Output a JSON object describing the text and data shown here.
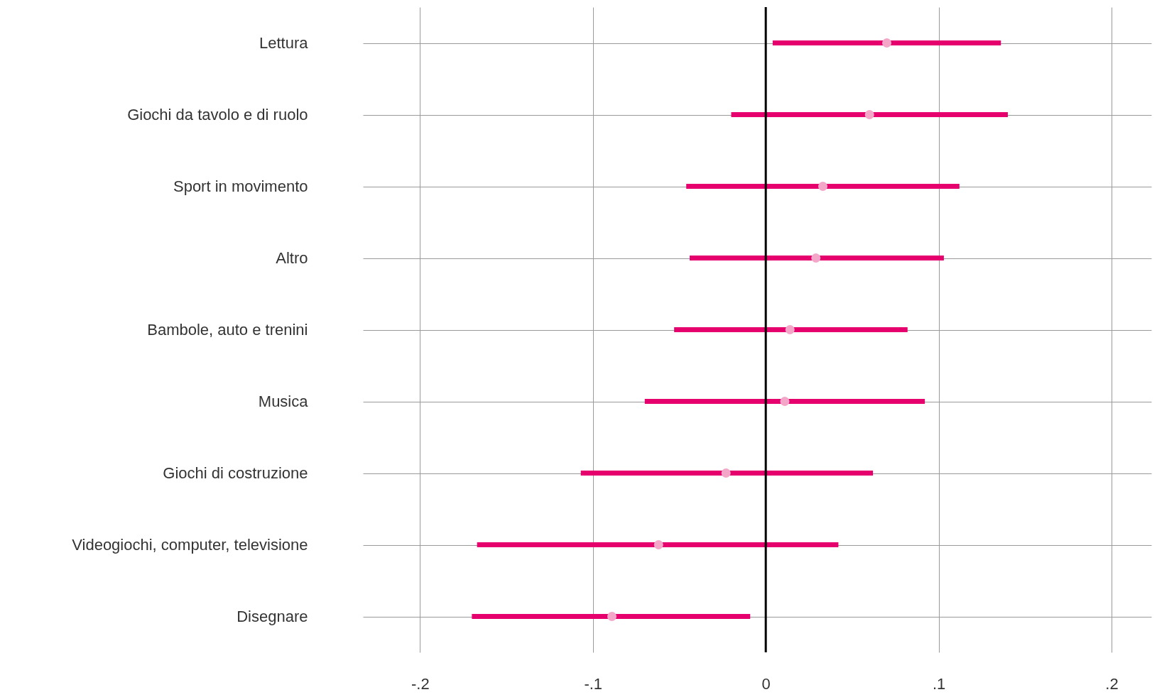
{
  "chart_data": {
    "type": "scatter",
    "orientation": "horizontal",
    "categories": [
      "Lettura",
      "Giochi da tavolo e di ruolo",
      "Sport in movimento",
      "Altro",
      "Bambole, auto e trenini",
      "Musica",
      "Giochi di costruzione",
      "Videogiochi, computer, televisione",
      "Disegnare"
    ],
    "series": [
      {
        "color": "#f4a6c8",
        "values": [
          0.07,
          0.06,
          0.033,
          0.029,
          0.014,
          0.011,
          -0.023,
          -0.062,
          -0.089
        ],
        "errors": [
          [
            0.004,
            0.136
          ],
          [
            -0.02,
            0.14
          ],
          [
            -0.046,
            0.112
          ],
          [
            -0.044,
            0.103
          ],
          [
            -0.053,
            0.082
          ],
          [
            -0.07,
            0.092
          ],
          [
            -0.107,
            0.062
          ],
          [
            -0.167,
            0.042
          ],
          [
            -0.17,
            -0.009
          ]
        ]
      }
    ],
    "xlim": [
      -0.233,
      0.223
    ],
    "xticks": [
      {
        "value": -0.2,
        "label": "-.2"
      },
      {
        "value": -0.1,
        "label": "-.1"
      },
      0,
      {
        "value": 0.1,
        "label": ".1"
      },
      {
        "value": 0.2,
        "label": ".2"
      }
    ],
    "grid": true,
    "marker": "circle",
    "ref_lines": [
      {
        "axis": "x",
        "value": 0,
        "color": "#000000"
      }
    ]
  }
}
